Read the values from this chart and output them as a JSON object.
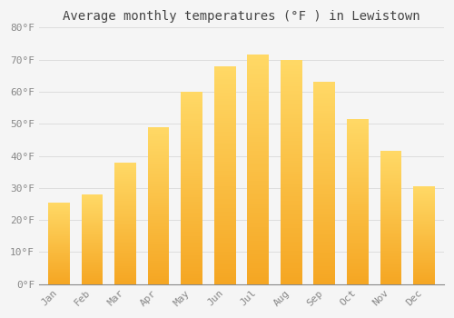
{
  "title": "Average monthly temperatures (°F ) in Lewistown",
  "months": [
    "Jan",
    "Feb",
    "Mar",
    "Apr",
    "May",
    "Jun",
    "Jul",
    "Aug",
    "Sep",
    "Oct",
    "Nov",
    "Dec"
  ],
  "values": [
    25.5,
    28,
    38,
    49,
    60,
    68,
    71.5,
    70,
    63,
    51.5,
    41.5,
    30.5
  ],
  "bar_color_bottom": "#F5A623",
  "bar_color_top": "#FFD966",
  "ylim": [
    0,
    80
  ],
  "ytick_step": 10,
  "background_color": "#F5F5F5",
  "grid_color": "#DDDDDD",
  "title_fontsize": 10,
  "tick_fontsize": 8,
  "tick_label_color": "#888888",
  "title_color": "#444444",
  "font_family": "monospace",
  "bar_width": 0.65,
  "figsize": [
    5.0,
    3.5
  ],
  "dpi": 100
}
